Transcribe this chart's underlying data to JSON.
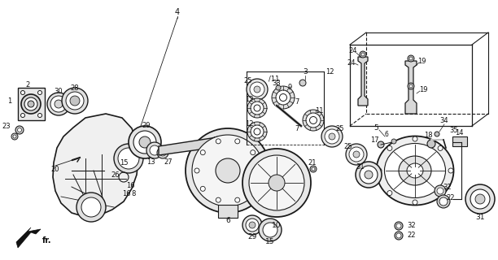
{
  "background_color": "#ffffff",
  "line_color": "#1a1a1a",
  "text_color": "#111111"
}
